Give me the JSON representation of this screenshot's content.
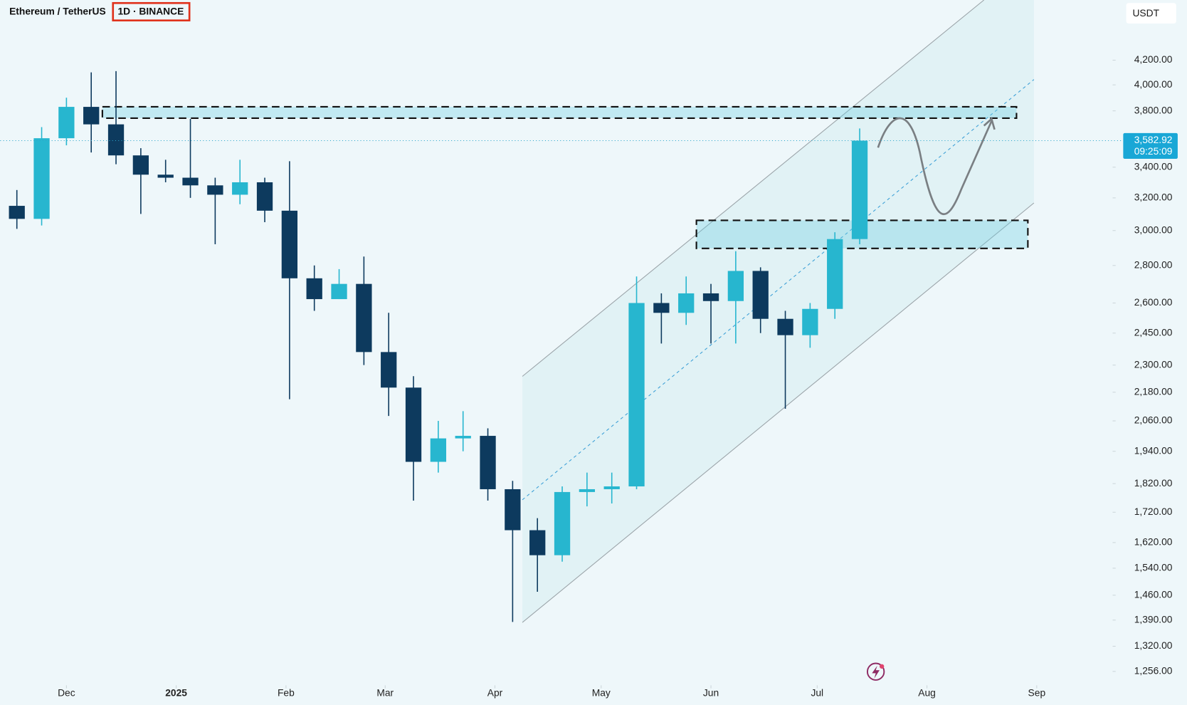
{
  "chart_data": {
    "type": "candlestick",
    "title": "Ethereum / TetherUS",
    "interval": "1D · BINANCE",
    "currency": "USDT",
    "scale": "log",
    "up_color": "#27b6cf",
    "down_color": "#0d3a5e",
    "x": [
      3,
      10,
      17,
      24,
      31,
      38,
      45,
      52,
      59,
      66,
      73,
      80,
      87,
      94,
      101,
      108,
      115,
      122,
      129,
      136,
      143,
      150,
      157,
      164,
      171,
      178,
      185,
      192,
      199,
      206,
      213,
      220,
      227,
      234,
      241
    ],
    "open": [
      3150,
      3070,
      3600,
      3830,
      3700,
      3480,
      3350,
      3330,
      3280,
      3220,
      3300,
      3120,
      2730,
      2620,
      2700,
      2360,
      2200,
      1900,
      1990,
      2000,
      1800,
      1660,
      1580,
      1790,
      1800,
      1810,
      2600,
      2550,
      2650,
      2610,
      2770,
      2520,
      2440,
      2570,
      2950
    ],
    "high": [
      3250,
      3680,
      3900,
      4100,
      4110,
      3530,
      3450,
      3740,
      3330,
      3450,
      3330,
      3440,
      2800,
      2780,
      2850,
      2550,
      2250,
      2060,
      2100,
      2030,
      1830,
      1700,
      1810,
      1860,
      1860,
      2740,
      2650,
      2740,
      2700,
      2880,
      2790,
      2560,
      2600,
      2990,
      3670
    ],
    "low": [
      3010,
      3030,
      3550,
      3500,
      3420,
      3100,
      3300,
      3200,
      2920,
      3160,
      3050,
      2150,
      2560,
      2620,
      2300,
      2080,
      1760,
      1860,
      1940,
      1760,
      1385,
      1470,
      1560,
      1740,
      1750,
      1800,
      2400,
      2490,
      2400,
      2400,
      2450,
      2110,
      2380,
      2520,
      2920
    ],
    "close": [
      3070,
      3600,
      3830,
      3700,
      3480,
      3350,
      3330,
      3280,
      3220,
      3300,
      3120,
      2730,
      2620,
      2700,
      2360,
      2200,
      1900,
      1990,
      2000,
      1800,
      1660,
      1580,
      1790,
      1800,
      1810,
      2600,
      2550,
      2650,
      2610,
      2770,
      2520,
      2440,
      2570,
      2950,
      3583
    ],
    "xlim": [
      -1.7,
      312
    ],
    "xticks": [
      {
        "value": 17,
        "label": "Dec"
      },
      {
        "value": 48,
        "label": "2025"
      },
      {
        "value": 79,
        "label": "Feb"
      },
      {
        "value": 107,
        "label": "Mar"
      },
      {
        "value": 138,
        "label": "Apr"
      },
      {
        "value": 168,
        "label": "May"
      },
      {
        "value": 199,
        "label": "Jun"
      },
      {
        "value": 229,
        "label": "Jul"
      },
      {
        "value": 260,
        "label": "Aug"
      },
      {
        "value": 291,
        "label": "Sep"
      }
    ],
    "ylim": [
      1222,
      4730
    ],
    "yticks": [
      {
        "value": 4200,
        "label": "4,200.00"
      },
      {
        "value": 4000,
        "label": "4,000.00"
      },
      {
        "value": 3800,
        "label": "3,800.00"
      },
      {
        "value": 3400,
        "label": "3,400.00"
      },
      {
        "value": 3200,
        "label": "3,200.00"
      },
      {
        "value": 3000,
        "label": "3,000.00"
      },
      {
        "value": 2800,
        "label": "2,800.00"
      },
      {
        "value": 2600,
        "label": "2,600.00"
      },
      {
        "value": 2450,
        "label": "2,450.00"
      },
      {
        "value": 2300,
        "label": "2,300.00"
      },
      {
        "value": 2180,
        "label": "2,180.00"
      },
      {
        "value": 2060,
        "label": "2,060.00"
      },
      {
        "value": 1940,
        "label": "1,940.00"
      },
      {
        "value": 1820,
        "label": "1,820.00"
      },
      {
        "value": 1720,
        "label": "1,720.00"
      },
      {
        "value": 1620,
        "label": "1,620.00"
      },
      {
        "value": 1540,
        "label": "1,540.00"
      },
      {
        "value": 1460,
        "label": "1,460.00"
      },
      {
        "value": 1390,
        "label": "1,390.00"
      },
      {
        "value": 1320,
        "label": "1,320.00"
      },
      {
        "value": 1256,
        "label": "1,256.00"
      }
    ],
    "last_price": {
      "value": 3582.92,
      "label": "3,582.92"
    },
    "countdown": "09:25:09"
  }
}
